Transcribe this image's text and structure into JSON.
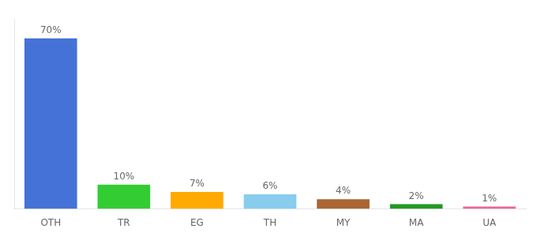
{
  "chart_data": {
    "type": "bar",
    "categories": [
      "OTH",
      "TR",
      "EG",
      "TH",
      "MY",
      "MA",
      "UA"
    ],
    "values": [
      70,
      10,
      7,
      6,
      4,
      2,
      1
    ],
    "value_labels": [
      "70%",
      "10%",
      "7%",
      "6%",
      "4%",
      "2%",
      "1%"
    ],
    "data_labels": true,
    "colors": [
      "#4472d6",
      "#33cc33",
      "#ffaa00",
      "#88ccee",
      "#aa6633",
      "#229922",
      "#ee6699"
    ],
    "ylim": [
      0,
      78
    ],
    "grid": false,
    "legend": false,
    "tick_labels": "x"
  }
}
